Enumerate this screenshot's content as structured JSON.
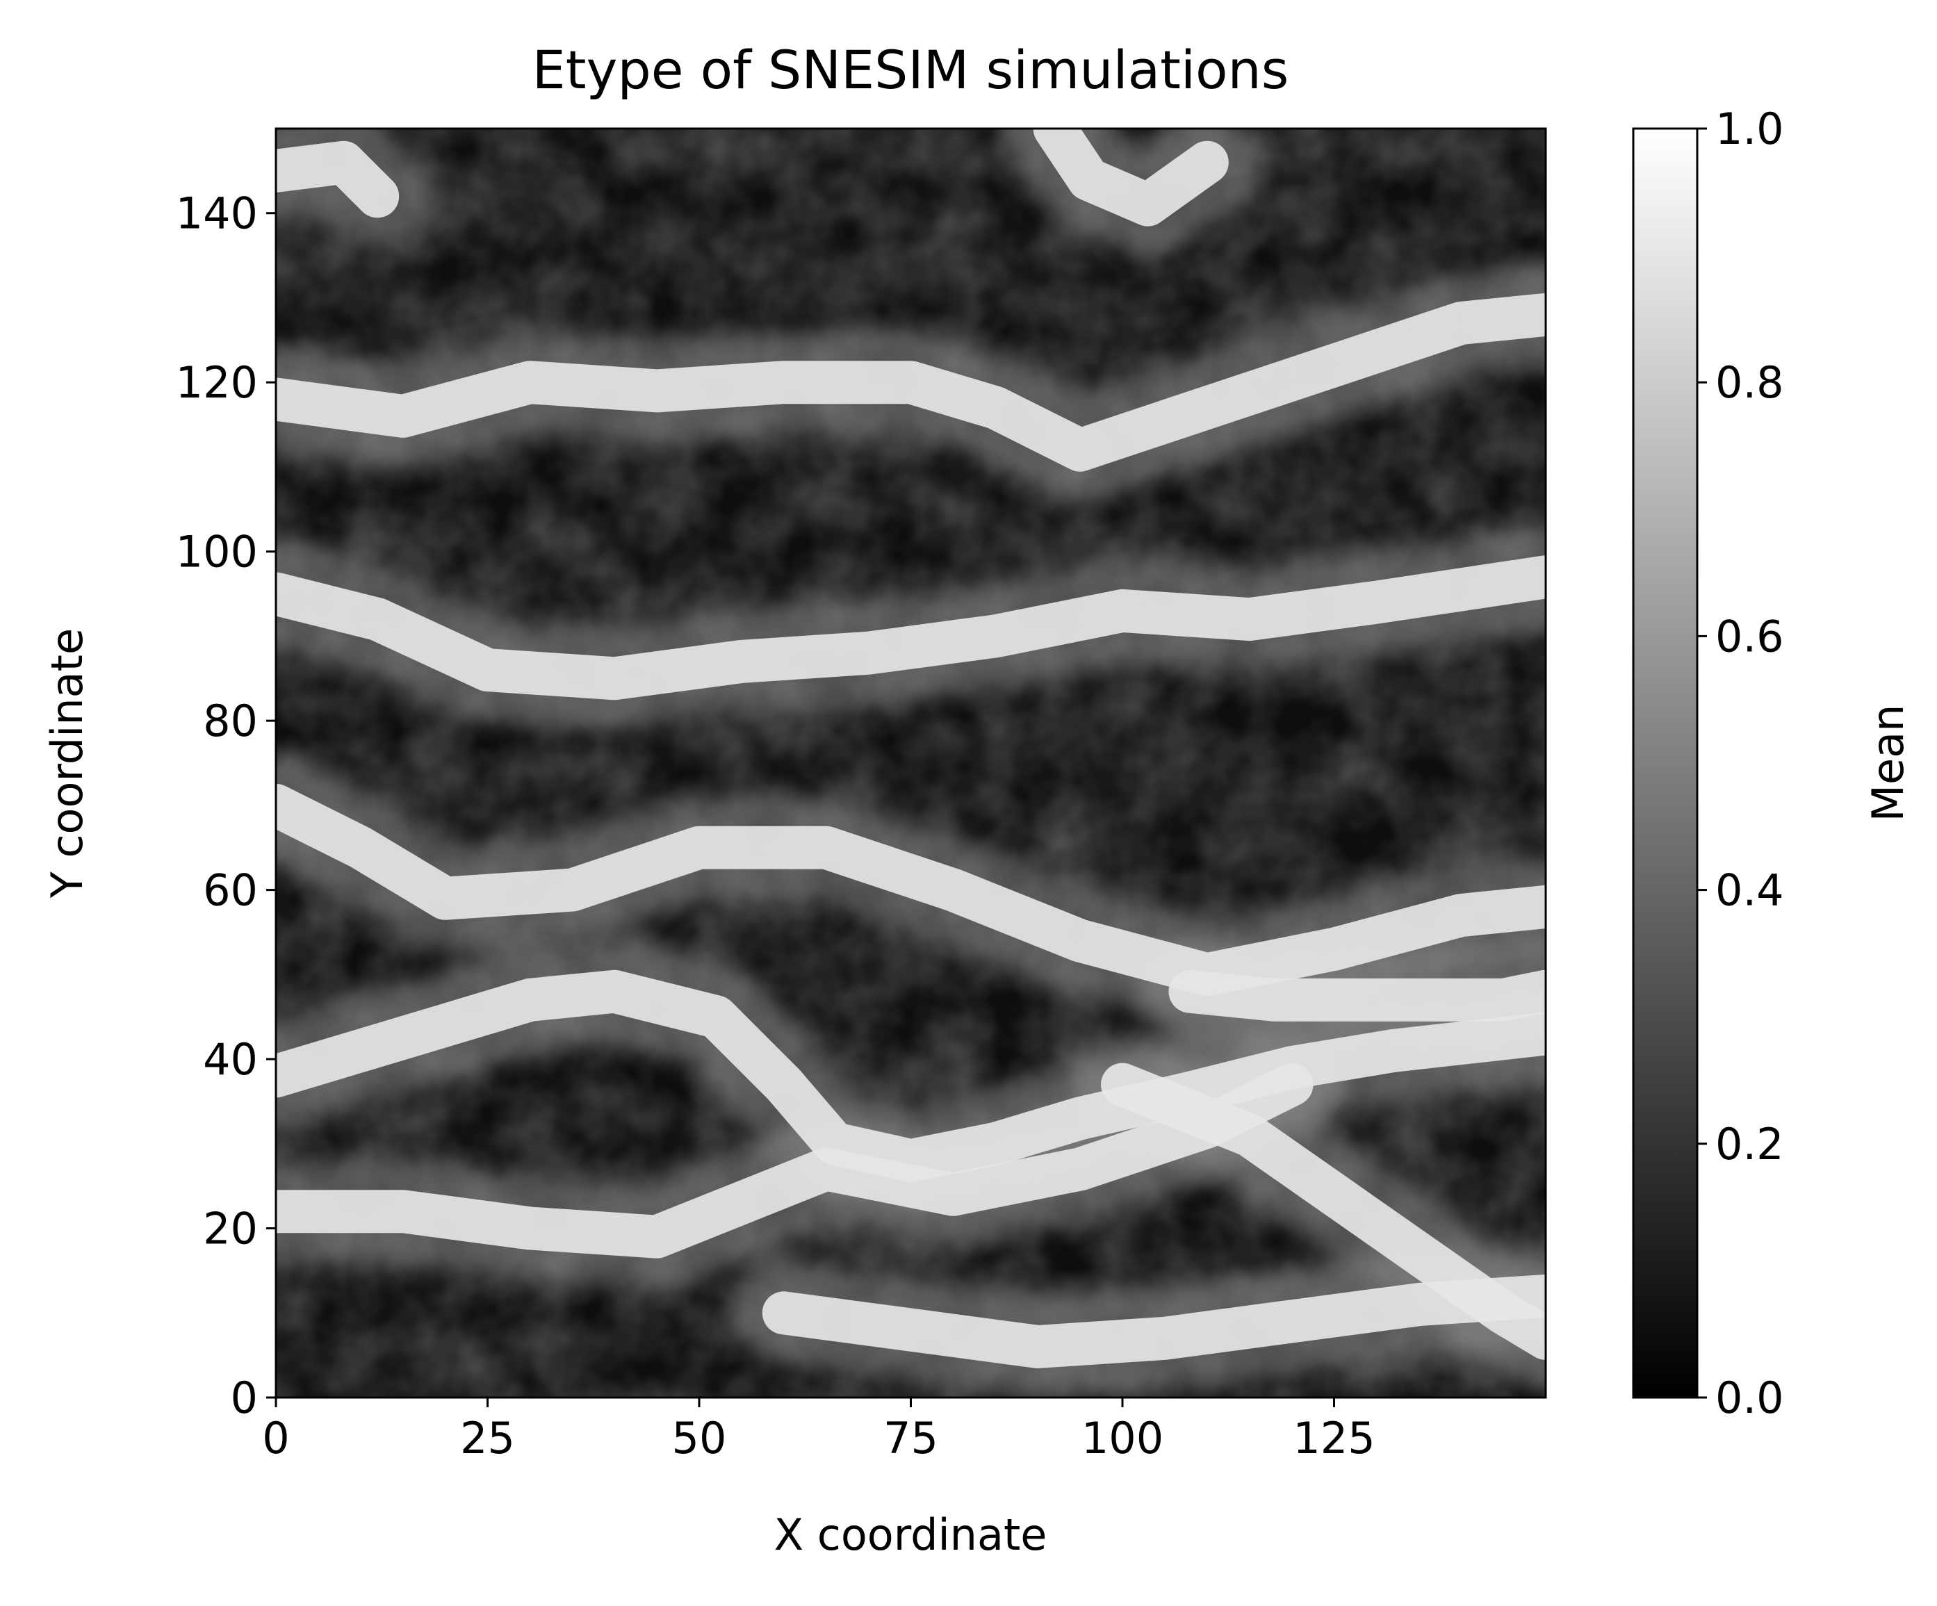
{
  "chart_data": {
    "type": "heatmap",
    "title": "Etype of SNESIM simulations",
    "xlabel": "X coordinate",
    "ylabel": "Y coordinate",
    "xlim": [
      0,
      150
    ],
    "ylim": [
      0,
      150
    ],
    "grid_size": [
      150,
      150
    ],
    "xticks": [
      0,
      25,
      50,
      75,
      100,
      125
    ],
    "xtick_labels": [
      "0",
      "25",
      "50",
      "75",
      "100",
      "125"
    ],
    "yticks": [
      0,
      20,
      40,
      60,
      80,
      100,
      120,
      140
    ],
    "ytick_labels": [
      "0",
      "20",
      "40",
      "60",
      "80",
      "100",
      "120",
      "140"
    ],
    "colormap": "gray",
    "colormap_colors": [
      "#000000",
      "#ffffff"
    ],
    "colorbar": {
      "label": "Mean",
      "range": [
        0.0,
        1.0
      ],
      "ticks": [
        0.0,
        0.2,
        0.4,
        0.6,
        0.8,
        1.0
      ],
      "tick_labels": [
        "0.0",
        "0.2",
        "0.4",
        "0.6",
        "0.8",
        "1.0"
      ]
    },
    "channels_mean_1": [
      [
        [
          0,
          95
        ],
        [
          12,
          92
        ],
        [
          25,
          86
        ],
        [
          40,
          85
        ],
        [
          55,
          87
        ],
        [
          70,
          88
        ],
        [
          85,
          90
        ],
        [
          100,
          93
        ],
        [
          115,
          92
        ],
        [
          130,
          94
        ],
        [
          150,
          97
        ]
      ],
      [
        [
          0,
          118
        ],
        [
          15,
          116
        ],
        [
          30,
          120
        ],
        [
          45,
          119
        ],
        [
          60,
          120
        ],
        [
          75,
          120
        ],
        [
          85,
          117
        ],
        [
          95,
          112
        ],
        [
          110,
          117
        ],
        [
          125,
          122
        ],
        [
          140,
          127
        ],
        [
          150,
          128
        ]
      ],
      [
        [
          0,
          70
        ],
        [
          10,
          65
        ],
        [
          20,
          59
        ],
        [
          35,
          60
        ],
        [
          50,
          65
        ],
        [
          65,
          65
        ],
        [
          80,
          60
        ],
        [
          95,
          54
        ],
        [
          110,
          50
        ],
        [
          125,
          53
        ],
        [
          140,
          57
        ],
        [
          150,
          58
        ]
      ],
      [
        [
          0,
          38
        ],
        [
          10,
          41
        ],
        [
          20,
          44
        ],
        [
          30,
          47
        ],
        [
          40,
          48
        ],
        [
          52,
          45
        ],
        [
          60,
          37
        ],
        [
          66,
          30
        ],
        [
          75,
          28
        ],
        [
          85,
          30
        ],
        [
          95,
          33
        ],
        [
          108,
          36
        ],
        [
          120,
          39
        ],
        [
          132,
          41
        ],
        [
          150,
          43
        ]
      ],
      [
        [
          0,
          22
        ],
        [
          15,
          22
        ],
        [
          30,
          20
        ],
        [
          45,
          19
        ],
        [
          55,
          23
        ],
        [
          65,
          27
        ],
        [
          80,
          24
        ],
        [
          95,
          27
        ],
        [
          110,
          32
        ],
        [
          120,
          37
        ]
      ],
      [
        [
          60,
          10
        ],
        [
          75,
          8
        ],
        [
          90,
          6
        ],
        [
          105,
          7
        ],
        [
          120,
          9
        ],
        [
          135,
          11
        ],
        [
          150,
          12
        ]
      ],
      [
        [
          100,
          37
        ],
        [
          115,
          31
        ],
        [
          125,
          24
        ],
        [
          135,
          17
        ],
        [
          145,
          10
        ],
        [
          150,
          7
        ]
      ],
      [
        [
          0,
          145
        ],
        [
          8,
          146
        ],
        [
          12,
          142
        ]
      ],
      [
        [
          92,
          150
        ],
        [
          96,
          144
        ],
        [
          103,
          141
        ],
        [
          110,
          146
        ]
      ],
      [
        [
          108,
          48
        ],
        [
          118,
          47
        ],
        [
          130,
          47
        ],
        [
          145,
          47
        ],
        [
          150,
          48
        ]
      ]
    ]
  }
}
